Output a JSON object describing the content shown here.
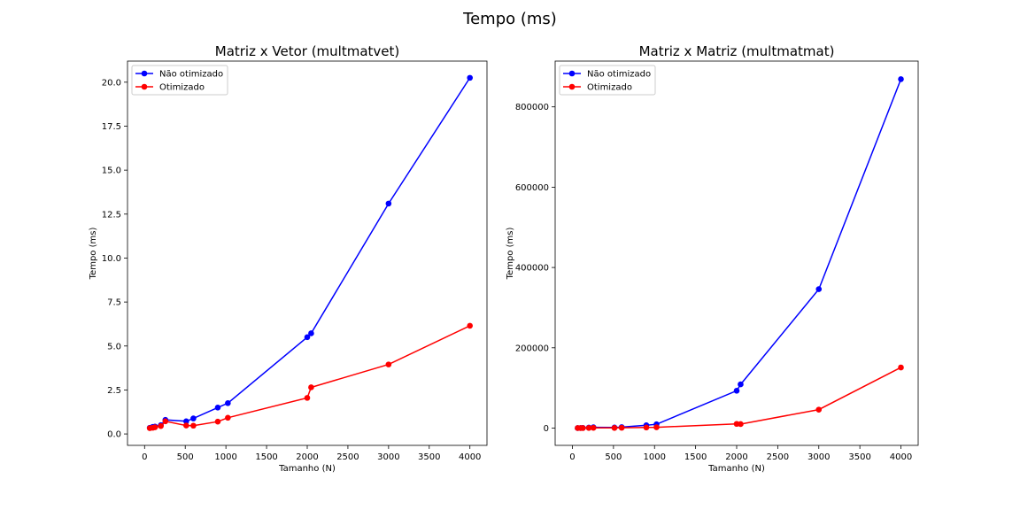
{
  "figure": {
    "suptitle": "Tempo (ms)"
  },
  "chart_data": [
    {
      "type": "line",
      "title": "Matriz x Vetor (multmatvet)",
      "xlabel": "Tamanho (N)",
      "ylabel": "Tempo (ms)",
      "xlim": [
        -210,
        4210
      ],
      "ylim": [
        -0.65,
        21.2
      ],
      "xticks": [
        0,
        500,
        1000,
        1500,
        2000,
        2500,
        3000,
        3500,
        4000
      ],
      "yticks": [
        0.0,
        2.5,
        5.0,
        7.5,
        10.0,
        12.5,
        15.0,
        17.5,
        20.0
      ],
      "ytick_labels": [
        "0.0",
        "2.5",
        "5.0",
        "7.5",
        "10.0",
        "12.5",
        "15.0",
        "17.5",
        "20.0"
      ],
      "legend_placement": "upper-left",
      "series": [
        {
          "name": "Não otimizado",
          "color": "#0000ff",
          "x": [
            64,
            100,
            128,
            200,
            256,
            512,
            600,
            900,
            1024,
            2000,
            2048,
            3000,
            4000
          ],
          "y": [
            0.35,
            0.4,
            0.42,
            0.5,
            0.8,
            0.72,
            0.88,
            1.5,
            1.75,
            5.5,
            5.72,
            13.1,
            20.25
          ]
        },
        {
          "name": "Otimizado",
          "color": "#ff0000",
          "x": [
            64,
            100,
            128,
            200,
            256,
            512,
            600,
            900,
            1024,
            2000,
            2048,
            3000,
            4000
          ],
          "y": [
            0.33,
            0.35,
            0.38,
            0.45,
            0.72,
            0.48,
            0.47,
            0.7,
            0.92,
            2.05,
            2.65,
            3.95,
            6.15
          ]
        }
      ]
    },
    {
      "type": "line",
      "title": "Matriz x Matriz (multmatmat)",
      "xlabel": "Tamanho (N)",
      "ylabel": "Tempo (ms)",
      "xlim": [
        -210,
        4210
      ],
      "ylim": [
        -43000,
        914000
      ],
      "xticks": [
        0,
        500,
        1000,
        1500,
        2000,
        2500,
        3000,
        3500,
        4000
      ],
      "yticks": [
        0,
        200000,
        400000,
        600000,
        800000
      ],
      "ytick_labels": [
        "0",
        "200000",
        "400000",
        "600000",
        "800000"
      ],
      "legend_placement": "upper-left",
      "series": [
        {
          "name": "Não otimizado",
          "color": "#0000ff",
          "x": [
            64,
            100,
            128,
            200,
            256,
            512,
            600,
            900,
            1024,
            2000,
            2048,
            3000,
            4000
          ],
          "y": [
            100,
            300,
            500,
            1200,
            2000,
            1500,
            2500,
            7000,
            9500,
            93000,
            109000,
            346000,
            869000
          ]
        },
        {
          "name": "Otimizado",
          "color": "#ff0000",
          "x": [
            64,
            100,
            128,
            200,
            256,
            512,
            600,
            900,
            1024,
            2000,
            2048,
            3000,
            4000
          ],
          "y": [
            50,
            100,
            200,
            400,
            600,
            500,
            800,
            1500,
            2000,
            10500,
            10000,
            46000,
            151000
          ]
        }
      ]
    }
  ]
}
